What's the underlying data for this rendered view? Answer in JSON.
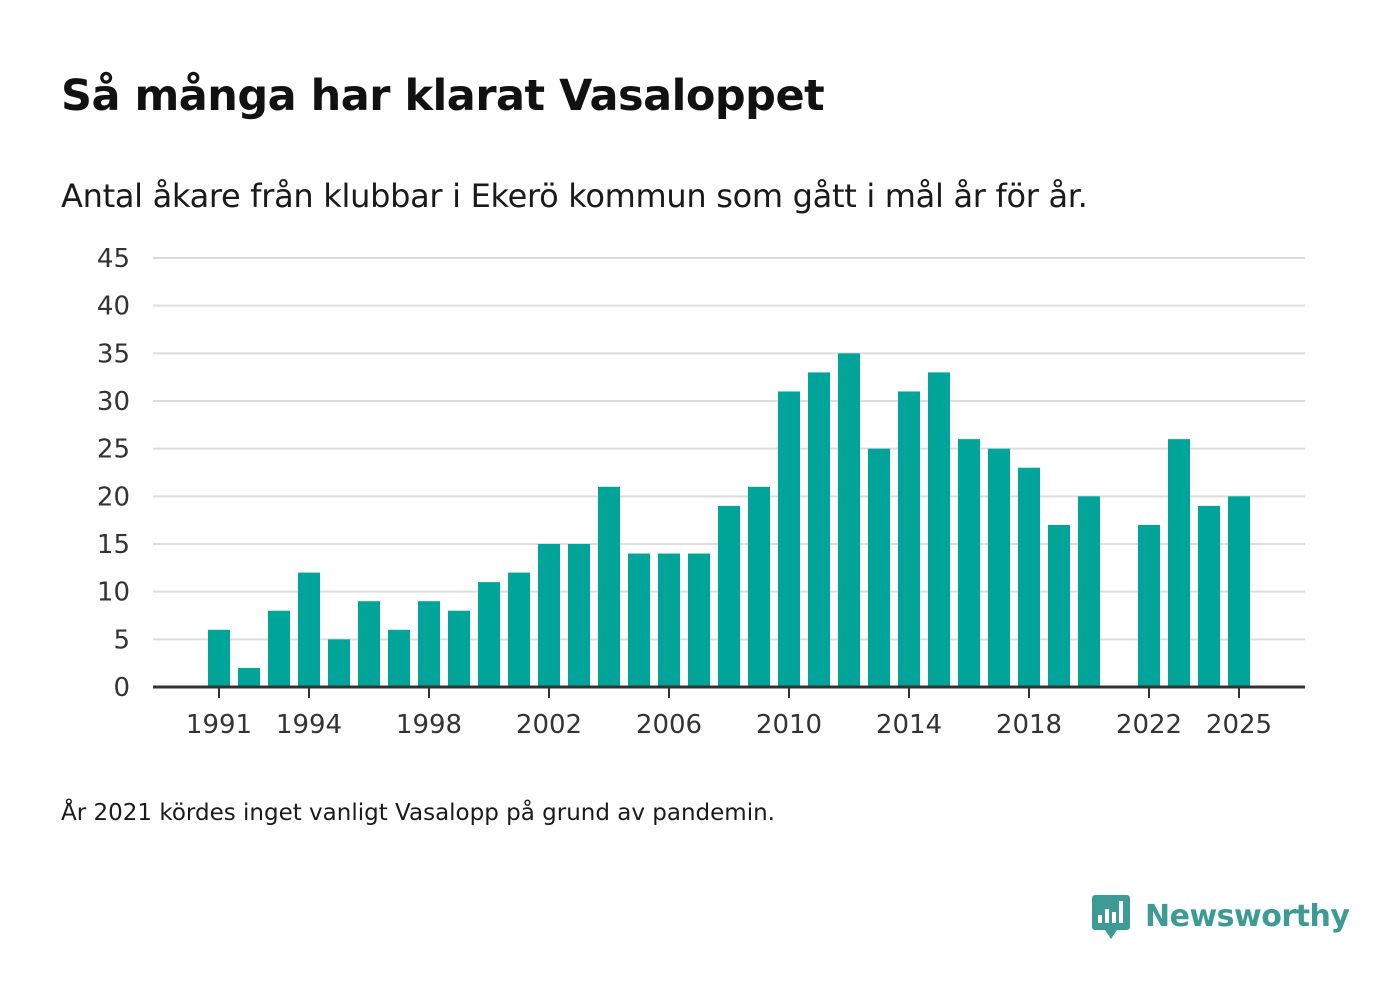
{
  "title": "Så många har klarat Vasaloppet",
  "subtitle": "Antal åkare från klubbar i Ekerö kommun som gått i mål år för år.",
  "footnote": "År 2021 kördes inget vanligt Vasalopp på grund av pandemin.",
  "brand": {
    "name": "Newsworthy",
    "logo_icon": "newsworthy-logo-icon",
    "color": "#3d9a94"
  },
  "colors": {
    "bar": "#00a499",
    "grid": "#dddddd",
    "axis": "#333333",
    "tick_text": "#333333"
  },
  "chart_data": {
    "type": "bar",
    "title": "Så många har klarat Vasaloppet",
    "xlabel": "",
    "ylabel": "",
    "ylim": [
      0,
      45
    ],
    "y_ticks": [
      0,
      5,
      10,
      15,
      20,
      25,
      30,
      35,
      40,
      45
    ],
    "x_tick_labels": [
      "1991",
      "1994",
      "1998",
      "2002",
      "2006",
      "2010",
      "2014",
      "2018",
      "2022",
      "2025"
    ],
    "grid": true,
    "legend": "none",
    "categories": [
      1990,
      1991,
      1992,
      1993,
      1994,
      1995,
      1996,
      1997,
      1998,
      1999,
      2000,
      2001,
      2002,
      2003,
      2004,
      2005,
      2006,
      2007,
      2008,
      2009,
      2010,
      2011,
      2012,
      2013,
      2014,
      2015,
      2016,
      2017,
      2018,
      2019,
      2020,
      2021,
      2022,
      2023,
      2024,
      2025
    ],
    "values": [
      null,
      6,
      2,
      8,
      12,
      5,
      9,
      6,
      9,
      8,
      11,
      12,
      15,
      15,
      21,
      14,
      14,
      14,
      19,
      21,
      31,
      33,
      35,
      25,
      31,
      33,
      26,
      25,
      23,
      17,
      20,
      null,
      17,
      26,
      19,
      20
    ]
  }
}
